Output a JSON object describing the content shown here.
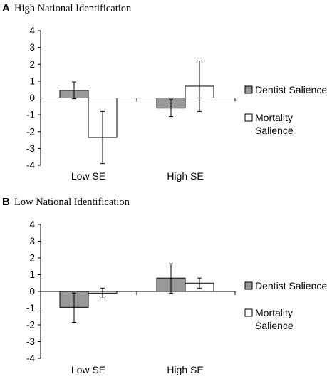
{
  "chart_data": [
    {
      "type": "bar",
      "panel_label": "A",
      "title": "High National Identification",
      "categories": [
        "Low SE",
        "High SE"
      ],
      "series": [
        {
          "name": "Dentist Salience",
          "values": [
            0.45,
            -0.6
          ],
          "error_low": [
            -0.05,
            -1.1
          ],
          "error_high": [
            0.95,
            -0.1
          ],
          "color": "#999999"
        },
        {
          "name": "Mortality Salience",
          "values": [
            -2.35,
            0.7
          ],
          "error_low": [
            -3.9,
            -0.8
          ],
          "error_high": [
            -0.8,
            2.2
          ],
          "color": "#ffffff"
        }
      ],
      "yticks": [
        "4",
        "3",
        "2",
        "1",
        "0",
        "-1",
        "-2",
        "-3",
        "-4"
      ],
      "ylim": [
        -4,
        4
      ],
      "legend": "right",
      "grid": false
    },
    {
      "type": "bar",
      "panel_label": "B",
      "title": "Low National Identification",
      "categories": [
        "Low SE",
        "High SE"
      ],
      "series": [
        {
          "name": "Dentist Salience",
          "values": [
            -0.95,
            0.8
          ],
          "error_low": [
            -1.85,
            -0.1
          ],
          "error_high": [
            -0.1,
            1.65
          ],
          "color": "#999999"
        },
        {
          "name": "Mortality Salience",
          "values": [
            -0.1,
            0.5
          ],
          "error_low": [
            -0.4,
            0.2
          ],
          "error_high": [
            0.2,
            0.8
          ],
          "color": "#ffffff"
        }
      ],
      "yticks": [
        "4",
        "3",
        "2",
        "1",
        "0",
        "-1",
        "-2",
        "-3",
        "-4"
      ],
      "ylim": [
        -4,
        4
      ],
      "legend": "right",
      "grid": false
    }
  ],
  "legend_labels": {
    "dentist": "Dentist Salience",
    "mortality_line1": "Mortality",
    "mortality_line2": "Salience"
  },
  "colors": {
    "dentist": "#999999",
    "mortality": "#ffffff",
    "axis": "#000000"
  }
}
